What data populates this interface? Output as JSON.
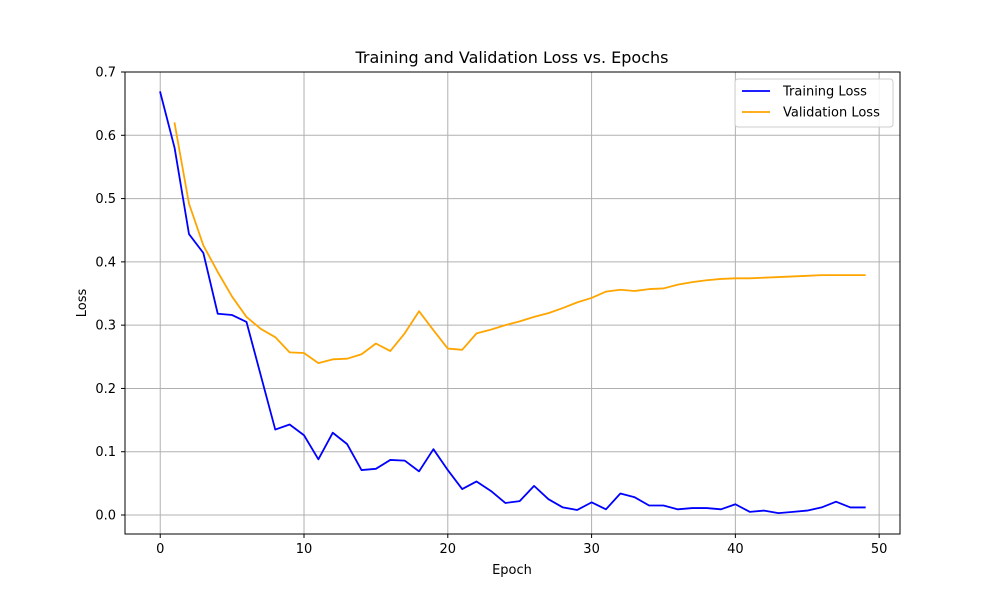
{
  "chart_data": {
    "type": "line",
    "title": "Training and Validation Loss vs. Epochs",
    "xlabel": "Epoch",
    "ylabel": "Loss",
    "xlim": [
      -2.45,
      51.45
    ],
    "ylim": [
      -0.03,
      0.7
    ],
    "xticks": [
      0,
      10,
      20,
      30,
      40,
      50
    ],
    "yticks": [
      0.0,
      0.1,
      0.2,
      0.3,
      0.4,
      0.5,
      0.6,
      0.7
    ],
    "xtick_labels": [
      "0",
      "10",
      "20",
      "30",
      "40",
      "50"
    ],
    "ytick_labels": [
      "0.0",
      "0.1",
      "0.2",
      "0.3",
      "0.4",
      "0.5",
      "0.6",
      "0.7"
    ],
    "grid": true,
    "legend_position": "top-right",
    "series": [
      {
        "name": "Training Loss",
        "color": "#0000ff",
        "x": [
          0,
          1,
          2,
          3,
          4,
          5,
          6,
          7,
          8,
          9,
          10,
          11,
          12,
          13,
          14,
          15,
          16,
          17,
          18,
          19,
          20,
          21,
          22,
          23,
          24,
          25,
          26,
          27,
          28,
          29,
          30,
          31,
          32,
          33,
          34,
          35,
          36,
          37,
          38,
          39,
          40,
          41,
          42,
          43,
          44,
          45,
          46,
          47,
          48,
          49
        ],
        "y": [
          0.668,
          0.58,
          0.444,
          0.414,
          0.318,
          0.316,
          0.305,
          0.22,
          0.135,
          0.143,
          0.126,
          0.088,
          0.13,
          0.112,
          0.071,
          0.073,
          0.087,
          0.086,
          0.069,
          0.104,
          0.071,
          0.041,
          0.053,
          0.038,
          0.019,
          0.022,
          0.046,
          0.025,
          0.012,
          0.008,
          0.02,
          0.009,
          0.034,
          0.028,
          0.015,
          0.015,
          0.009,
          0.011,
          0.011,
          0.009,
          0.017,
          0.005,
          0.007,
          0.003,
          0.005,
          0.007,
          0.012,
          0.021,
          0.012,
          0.012
        ]
      },
      {
        "name": "Validation Loss",
        "color": "#ffa500",
        "x": [
          1,
          2,
          3,
          4,
          5,
          6,
          7,
          8,
          9,
          10,
          11,
          12,
          13,
          14,
          15,
          16,
          17,
          18,
          19,
          20,
          21,
          22,
          23,
          24,
          25,
          26,
          27,
          28,
          29,
          30,
          31,
          32,
          33,
          34,
          35,
          36,
          37,
          38,
          39,
          40,
          41,
          42,
          43,
          44,
          45,
          46,
          47,
          48,
          49
        ],
        "y": [
          0.619,
          0.492,
          0.426,
          0.384,
          0.345,
          0.313,
          0.294,
          0.281,
          0.257,
          0.256,
          0.24,
          0.246,
          0.247,
          0.254,
          0.271,
          0.259,
          0.287,
          0.322,
          0.292,
          0.263,
          0.261,
          0.287,
          0.293,
          0.3,
          0.306,
          0.313,
          0.319,
          0.327,
          0.336,
          0.343,
          0.353,
          0.356,
          0.354,
          0.357,
          0.358,
          0.364,
          0.368,
          0.371,
          0.373,
          0.374,
          0.374,
          0.375,
          0.376,
          0.377,
          0.378,
          0.379,
          0.379,
          0.379,
          0.379
        ]
      }
    ]
  }
}
